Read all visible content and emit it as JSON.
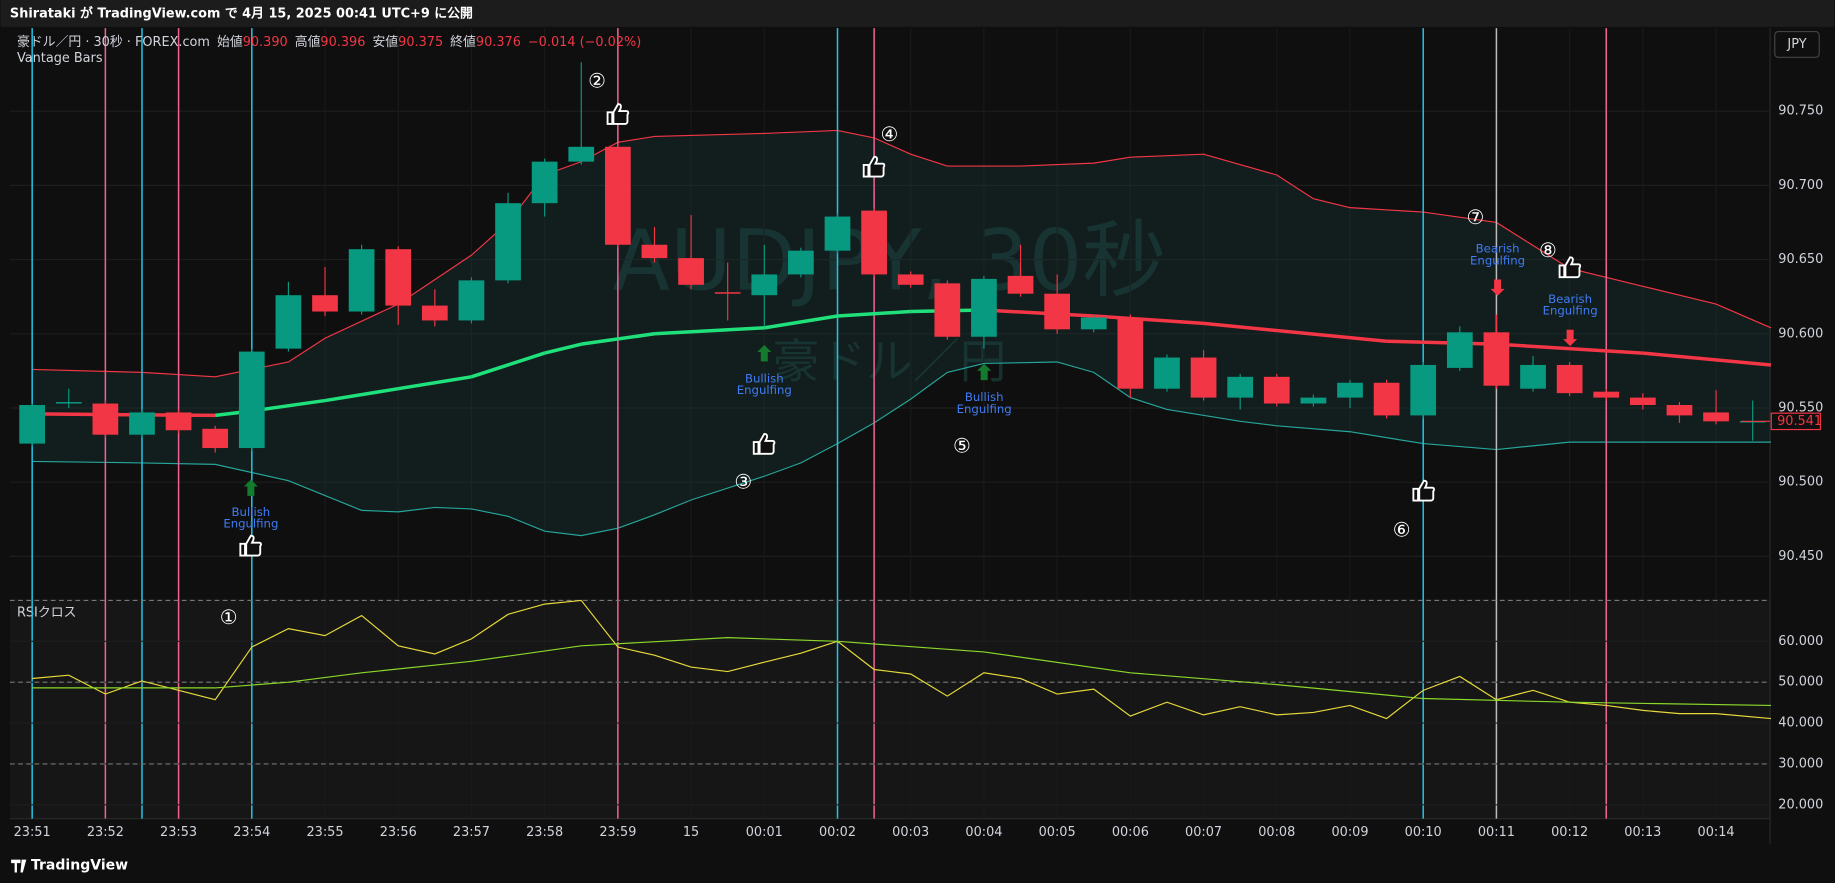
{
  "header": "Shirataki が TradingView.com で 4月 15, 2025 00:41 UTC+9 に公開",
  "legend": {
    "symbol": "豪ドル／円 · 30秒 · FOREX.com",
    "open_label": "始値",
    "open": "90.390",
    "high_label": "高値",
    "high": "90.396",
    "low_label": "安値",
    "low": "90.375",
    "close_label": "終値",
    "close": "90.376",
    "change": "−0.014 (−0.02%)",
    "indicator": "Vantage Bars"
  },
  "currency": "JPY",
  "watermark": "AUDJPY, 30秒",
  "watermark_sub": "豪ドル／円",
  "footer": "TradingView",
  "markers": [
    "①",
    "②",
    "③",
    "④",
    "⑤",
    "⑥",
    "⑦",
    "⑧"
  ],
  "patterns": [
    {
      "lines": [
        "Bullish",
        "Engulfing"
      ]
    },
    {
      "lines": [
        "Bullish",
        "Engulfing"
      ]
    },
    {
      "lines": [
        "Bullish",
        "Engulfing"
      ]
    },
    {
      "lines": [
        "Bearish",
        "Engulfing"
      ]
    },
    {
      "lines": [
        "Bearish",
        "Engulfing"
      ]
    }
  ],
  "vlines": [
    {
      "color": "#22c3e6",
      "x": [
        0,
        3,
        6,
        22,
        38
      ]
    },
    {
      "color": "#f06292",
      "x": [
        2,
        4,
        16,
        23,
        43
      ]
    },
    {
      "color": "#bbbbbb",
      "x": [
        40
      ]
    }
  ],
  "chart_data": [
    {
      "type": "candlestick",
      "categories": [
        "23:51",
        null,
        "23:52",
        null,
        "23:53",
        null,
        "23:54",
        null,
        "23:55",
        null,
        "23:56",
        null,
        "23:57",
        null,
        "23:58",
        null,
        "23:59",
        null,
        "15",
        null,
        "00:01",
        null,
        "00:02",
        null,
        "00:03",
        null,
        "00:04",
        null,
        "00:05",
        null,
        "00:06",
        null,
        "00:07",
        null,
        "00:08",
        null,
        "00:09",
        null,
        "00:10",
        null,
        "00:11",
        null,
        "00:12",
        null,
        "00:13",
        null,
        "00:14",
        null
      ],
      "open": [
        90.526,
        90.553,
        90.553,
        90.532,
        90.547,
        90.536,
        90.523,
        90.59,
        90.626,
        90.615,
        90.657,
        90.619,
        90.609,
        90.636,
        90.688,
        90.716,
        90.726,
        90.66,
        90.651,
        90.628,
        90.626,
        90.64,
        90.656,
        90.683,
        90.64,
        90.634,
        90.598,
        90.639,
        90.627,
        90.603,
        90.611,
        90.563,
        90.584,
        90.557,
        90.571,
        90.553,
        90.557,
        90.567,
        90.545,
        90.577,
        90.601,
        90.563,
        90.579,
        90.561,
        90.557,
        90.552,
        90.547,
        90.541
      ],
      "high": [
        90.553,
        90.563,
        90.555,
        90.549,
        90.549,
        90.538,
        90.59,
        90.635,
        90.645,
        90.66,
        90.659,
        90.63,
        90.638,
        90.695,
        90.718,
        90.783,
        90.728,
        90.672,
        90.68,
        90.648,
        90.66,
        90.658,
        90.681,
        90.685,
        90.642,
        90.636,
        90.639,
        90.66,
        90.64,
        90.613,
        90.613,
        90.586,
        90.589,
        90.573,
        90.573,
        90.559,
        90.569,
        90.569,
        90.581,
        90.605,
        90.613,
        90.585,
        90.581,
        90.563,
        90.56,
        90.554,
        90.562,
        90.555
      ],
      "low": [
        90.524,
        90.55,
        90.53,
        90.53,
        90.533,
        90.52,
        90.521,
        90.588,
        90.612,
        90.613,
        90.606,
        90.605,
        90.607,
        90.634,
        90.679,
        90.714,
        90.658,
        90.648,
        90.63,
        90.609,
        90.605,
        90.638,
        90.654,
        90.638,
        90.631,
        90.596,
        90.59,
        90.625,
        90.6,
        90.601,
        90.557,
        90.561,
        90.555,
        90.549,
        90.551,
        90.551,
        90.55,
        90.543,
        90.543,
        90.575,
        90.563,
        90.561,
        90.558,
        90.555,
        90.549,
        90.54,
        90.539,
        90.528
      ],
      "close": [
        90.552,
        90.554,
        90.532,
        90.547,
        90.535,
        90.523,
        90.588,
        90.626,
        90.615,
        90.657,
        90.619,
        90.609,
        90.636,
        90.688,
        90.716,
        90.726,
        90.66,
        90.651,
        90.633,
        90.627,
        90.64,
        90.656,
        90.679,
        90.64,
        90.633,
        90.598,
        90.637,
        90.627,
        90.603,
        90.611,
        90.563,
        90.584,
        90.557,
        90.571,
        90.553,
        90.557,
        90.567,
        90.545,
        90.579,
        90.601,
        90.565,
        90.579,
        90.56,
        90.557,
        90.552,
        90.545,
        90.541,
        90.541
      ],
      "up_color": "#089981",
      "down_color": "#f23645",
      "ylim": [
        90.423,
        90.806
      ],
      "yticks": [
        {
          "value": 90.45,
          "label": "90.450"
        },
        {
          "value": 90.5,
          "label": "90.500"
        },
        {
          "value": 90.55,
          "label": "90.550"
        },
        {
          "value": 90.6,
          "label": "90.600"
        },
        {
          "value": 90.65,
          "label": "90.650"
        },
        {
          "value": 90.7,
          "label": "90.700"
        },
        {
          "value": 90.75,
          "label": "90.750"
        }
      ],
      "last_price": 90.541,
      "mid": {
        "x": [
          0,
          5,
          6,
          8,
          10,
          12,
          14,
          15,
          17,
          20,
          22,
          24,
          26,
          29,
          32,
          37,
          40,
          44,
          47.5
        ],
        "values": [
          90.546,
          90.545,
          90.548,
          90.555,
          90.563,
          90.571,
          90.587,
          90.593,
          90.6,
          90.604,
          90.612,
          90.615,
          90.616,
          90.612,
          90.607,
          90.595,
          90.593,
          90.587,
          90.579
        ],
        "rise_color": "#1fe07a",
        "fall_color": "#f23645"
      },
      "upper": {
        "color": "#f23645",
        "x": [
          0,
          3,
          5,
          7,
          8,
          10,
          12,
          13,
          14,
          15,
          16,
          17,
          20,
          22,
          23,
          24,
          25,
          27,
          29,
          30,
          32,
          34,
          35,
          36,
          38,
          40,
          42,
          44,
          46,
          47.5
        ],
        "values": [
          90.576,
          90.574,
          90.571,
          90.581,
          90.597,
          90.62,
          90.653,
          90.675,
          90.707,
          90.716,
          90.729,
          90.733,
          90.735,
          90.737,
          90.732,
          90.721,
          90.713,
          90.713,
          90.715,
          90.719,
          90.721,
          90.707,
          90.691,
          90.685,
          90.682,
          90.675,
          90.644,
          90.632,
          90.62,
          90.604
        ]
      },
      "lower": {
        "color": "#26a69a",
        "x": [
          0,
          3,
          5,
          7,
          9,
          10,
          11,
          12,
          13,
          14,
          15,
          16,
          17,
          18,
          20,
          21,
          22,
          23,
          24,
          25,
          26,
          28,
          29,
          30,
          31,
          33,
          34,
          36,
          38,
          40,
          42,
          47.5
        ],
        "values": [
          90.514,
          90.513,
          90.512,
          90.501,
          90.481,
          90.48,
          90.483,
          90.482,
          90.477,
          90.467,
          90.464,
          90.469,
          90.478,
          90.488,
          90.504,
          90.513,
          90.526,
          90.54,
          90.556,
          90.574,
          90.58,
          90.581,
          90.574,
          90.557,
          90.549,
          90.541,
          90.538,
          90.534,
          90.526,
          90.522,
          90.527,
          90.527
        ]
      }
    },
    {
      "type": "line",
      "title": "RSIクロス",
      "ylim": [
        16.6,
        70.4
      ],
      "yticks": [
        {
          "value": 20,
          "label": "20.000"
        },
        {
          "value": 30,
          "label": "30.000"
        },
        {
          "value": 40,
          "label": "40.000"
        },
        {
          "value": 50,
          "label": "50.000"
        },
        {
          "value": 60,
          "label": "60.000"
        }
      ],
      "bands": [
        30,
        50,
        70
      ],
      "series": [
        {
          "color": "#e6d93a",
          "x": [
            0,
            1,
            2,
            3,
            4,
            5,
            6,
            7,
            8,
            9,
            10,
            11,
            12,
            13,
            14,
            15,
            16,
            17,
            18,
            19,
            20,
            21,
            22,
            23,
            24,
            25,
            26,
            27,
            28,
            29,
            30,
            31,
            32,
            33,
            34,
            35,
            36,
            37,
            38,
            39,
            40,
            41,
            42,
            43,
            44,
            45,
            46,
            47.5
          ],
          "values": [
            50.9,
            51.7,
            47.1,
            50.3,
            48,
            45.7,
            58.6,
            63.1,
            61.4,
            66.3,
            58.9,
            56.9,
            60.6,
            66.6,
            69.1,
            70,
            58.6,
            56.6,
            53.7,
            52.6,
            54.9,
            57.1,
            60,
            53.1,
            52,
            46.6,
            52.3,
            50.9,
            47.1,
            48.3,
            41.7,
            45.1,
            42,
            44,
            42,
            42.6,
            44.3,
            41.1,
            48,
            51.4,
            45.7,
            48,
            45.1,
            44.3,
            43.1,
            42.3,
            42.3,
            41.1
          ]
        },
        {
          "color": "#8bd82a",
          "x": [
            0,
            5,
            7,
            9,
            12,
            15,
            19,
            22,
            26,
            30,
            34,
            38,
            42,
            47.5
          ],
          "values": [
            48.6,
            48.6,
            50,
            52.3,
            55.1,
            58.9,
            60.9,
            60,
            57.4,
            52.3,
            49.4,
            46,
            45.1,
            44.3
          ]
        }
      ]
    }
  ]
}
